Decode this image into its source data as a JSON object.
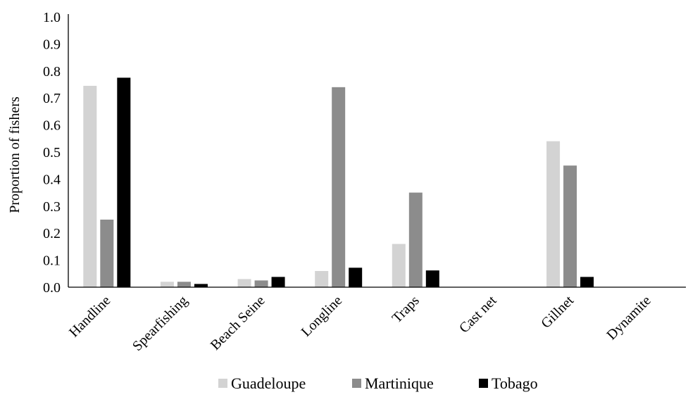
{
  "chart_data": {
    "type": "bar",
    "title": "",
    "xlabel": "",
    "ylabel": "Proportion of fishers",
    "ylim": [
      0,
      1.0
    ],
    "yticks": [
      "0.0",
      "0.1",
      "0.2",
      "0.3",
      "0.4",
      "0.5",
      "0.6",
      "0.7",
      "0.8",
      "0.9",
      "1.0"
    ],
    "grid": false,
    "legend_position": "bottom",
    "categories": [
      "Handline",
      "Spearfishing",
      "Beach Seine",
      "Longline",
      "Traps",
      "Cast net",
      "Gillnet",
      "Dynamite"
    ],
    "series": [
      {
        "name": "Guadeloupe",
        "color": "#d3d3d3",
        "values": [
          0.745,
          0.02,
          0.03,
          0.06,
          0.16,
          0,
          0.54,
          0
        ]
      },
      {
        "name": "Martinique",
        "color": "#8c8c8c",
        "values": [
          0.25,
          0.02,
          0.025,
          0.74,
          0.35,
          0,
          0.45,
          0
        ]
      },
      {
        "name": "Tobago",
        "color": "#000000",
        "values": [
          0.775,
          0.012,
          0.038,
          0.072,
          0.062,
          0,
          0.038,
          0
        ]
      }
    ]
  }
}
